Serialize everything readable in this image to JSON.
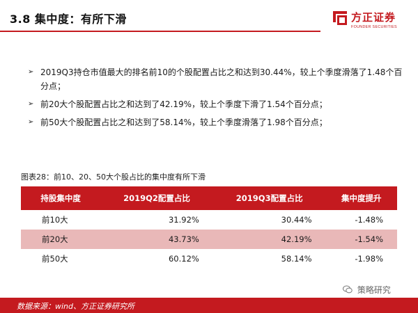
{
  "header": {
    "title": "3.8 集中度：有所下滑"
  },
  "logo": {
    "name_cn": "方正证券",
    "name_en": "FOUNDER SECURITIES"
  },
  "bullets": [
    "2019Q3持仓市值最大的排名前10的个股配置占比之和达到30.44%，较上个季度滑落了1.48个百分点；",
    "前20大个股配置占比之和达到了42.19%，较上个季度下滑了1.54个百分点；",
    "前50大个股配置占比之和达到了58.14%，较上个季度滑落了1.98个百分点；"
  ],
  "figure": {
    "caption": "图表28：前10、20、50大个股占比的集中度有所下滑"
  },
  "table": {
    "headers": [
      "持股集中度",
      "2019Q2配置占比",
      "2019Q3配置占比",
      "集中度提升"
    ],
    "rows": [
      [
        "前10大",
        "31.92%",
        "30.44%",
        "-1.48%"
      ],
      [
        "前20大",
        "43.73%",
        "42.19%",
        "-1.54%"
      ],
      [
        "前50大",
        "60.12%",
        "58.14%",
        "-1.98%"
      ]
    ]
  },
  "watermark": "策略研究",
  "footer": {
    "source": "数据来源：wind、方正证券研究所"
  },
  "colors": {
    "brand_red": "#c41a1f",
    "row_highlight": "#e9b8b8"
  }
}
